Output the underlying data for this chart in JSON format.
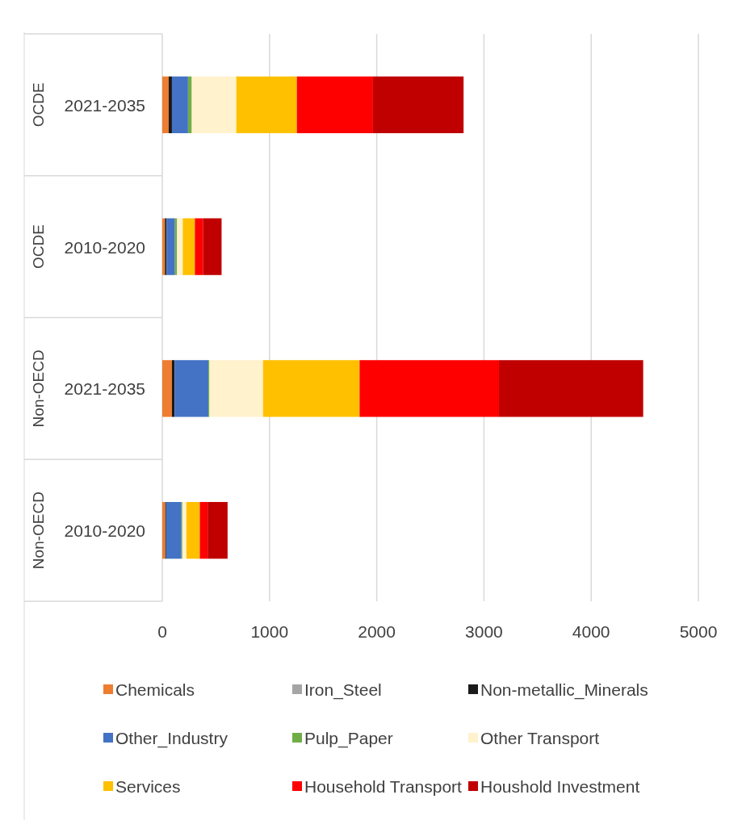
{
  "chart_data": {
    "type": "bar",
    "orientation": "horizontal",
    "stacked": true,
    "categories": [
      "2021-2035",
      "2010-2020",
      "2021-2035",
      "2010-2020"
    ],
    "annotations": [
      "OCDE",
      "OCDE",
      "Non-OECD",
      "Non-OECD"
    ],
    "series": [
      {
        "name": "Chemicals",
        "color": "#ed7d31",
        "values": [
          60,
          25,
          90,
          28
        ]
      },
      {
        "name": "Iron_Steel",
        "color": "#a5a5a5",
        "values": [
          0,
          0,
          0,
          0
        ]
      },
      {
        "name": "Non-metallic_Minerals",
        "color": "#1a1a1a",
        "values": [
          30,
          15,
          25,
          8
        ]
      },
      {
        "name": "Other_Industry",
        "color": "#4472c4",
        "values": [
          150,
          78,
          315,
          143
        ]
      },
      {
        "name": "Pulp_Paper",
        "color": "#70ad47",
        "values": [
          35,
          20,
          10,
          8
        ]
      },
      {
        "name": "Other Transport",
        "color": "#fff2cc",
        "values": [
          415,
          53,
          500,
          38
        ]
      },
      {
        "name": "Services",
        "color": "#ffc000",
        "values": [
          565,
          113,
          900,
          125
        ]
      },
      {
        "name": "Household Transport",
        "color": "#ff0000",
        "values": [
          710,
          78,
          1300,
          73
        ]
      },
      {
        "name": "Houshold Investment",
        "color": "#c00000",
        "values": [
          845,
          171,
          1345,
          186
        ]
      }
    ],
    "xlim": [
      0,
      5000
    ],
    "xticks": [
      0,
      1000,
      2000,
      3000,
      4000,
      5000
    ],
    "grid": "x",
    "legend": "bottom"
  }
}
